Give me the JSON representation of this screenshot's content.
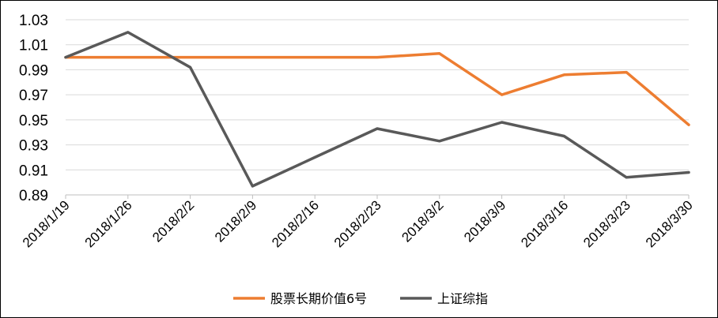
{
  "chart_data": {
    "type": "line",
    "categories": [
      "2018/1/19",
      "2018/1/26",
      "2018/2/2",
      "2018/2/9",
      "2018/2/16",
      "2018/2/23",
      "2018/3/2",
      "2018/3/9",
      "2018/3/16",
      "2018/3/23",
      "2018/3/30"
    ],
    "series": [
      {
        "name": "股票长期价值6号",
        "color": "#ED7D31",
        "values": [
          1.0,
          1.0,
          1.0,
          1.0,
          1.0,
          1.0,
          1.003,
          0.97,
          0.986,
          0.988,
          0.946
        ]
      },
      {
        "name": "上证综指",
        "color": "#595959",
        "values": [
          1.0,
          1.02,
          0.992,
          0.897,
          0.92,
          0.943,
          0.933,
          0.948,
          0.937,
          0.904,
          0.908
        ]
      }
    ],
    "yticks": [
      "1.03",
      "1.01",
      "0.99",
      "0.97",
      "0.95",
      "0.93",
      "0.91",
      "0.89"
    ],
    "ylim": [
      0.89,
      1.03
    ],
    "grid": true,
    "legend_position": "bottom"
  }
}
